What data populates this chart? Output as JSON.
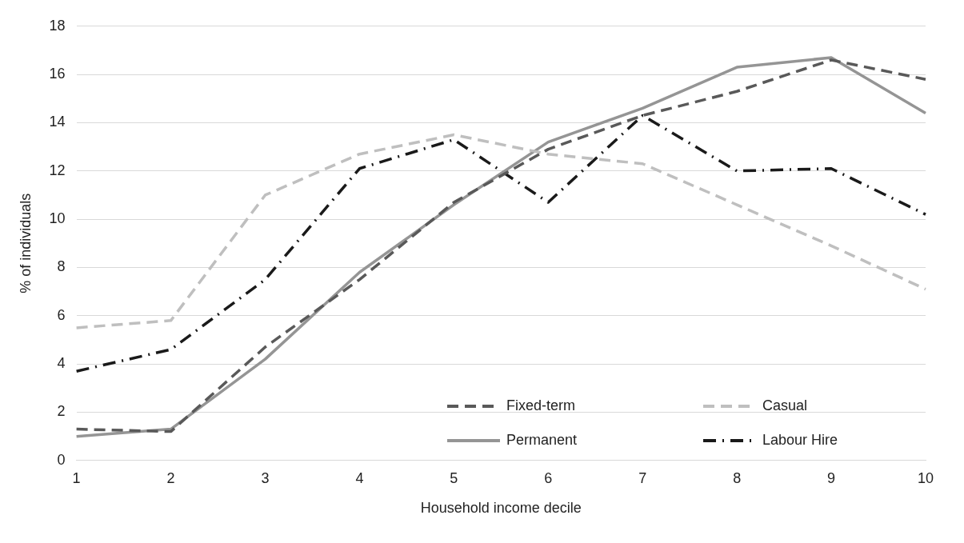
{
  "chart_data": {
    "type": "line",
    "xlabel": "Household income decile",
    "ylabel": "% of individuals",
    "categories": [
      "1",
      "2",
      "3",
      "4",
      "5",
      "6",
      "7",
      "8",
      "9",
      "10"
    ],
    "ylim": [
      0,
      18
    ],
    "yticks": [
      0,
      2,
      4,
      6,
      8,
      10,
      12,
      14,
      16,
      18
    ],
    "grid": "y",
    "legend": "bottom right",
    "marker": "none",
    "series": [
      {
        "name": "Fixed-term",
        "color": "#595959",
        "line_style": "dashed",
        "values": [
          1.3,
          1.2,
          4.7,
          7.5,
          10.7,
          12.9,
          14.3,
          15.3,
          16.6,
          15.8
        ]
      },
      {
        "name": "Casual",
        "color": "#bfbfbf",
        "line_style": "dashed",
        "values": [
          5.5,
          5.8,
          11.0,
          12.7,
          13.5,
          12.7,
          12.3,
          10.6,
          8.9,
          7.1
        ]
      },
      {
        "name": "Permanent",
        "color": "#959595",
        "line_style": "solid",
        "values": [
          1.0,
          1.3,
          4.2,
          7.8,
          10.6,
          13.2,
          14.6,
          16.3,
          16.7,
          14.4
        ]
      },
      {
        "name": "Labour Hire",
        "color": "#1a1a1a",
        "line_style": "dashdot",
        "values": [
          3.7,
          4.6,
          7.5,
          12.1,
          13.3,
          10.7,
          14.3,
          12.0,
          12.1,
          10.2
        ]
      }
    ]
  }
}
